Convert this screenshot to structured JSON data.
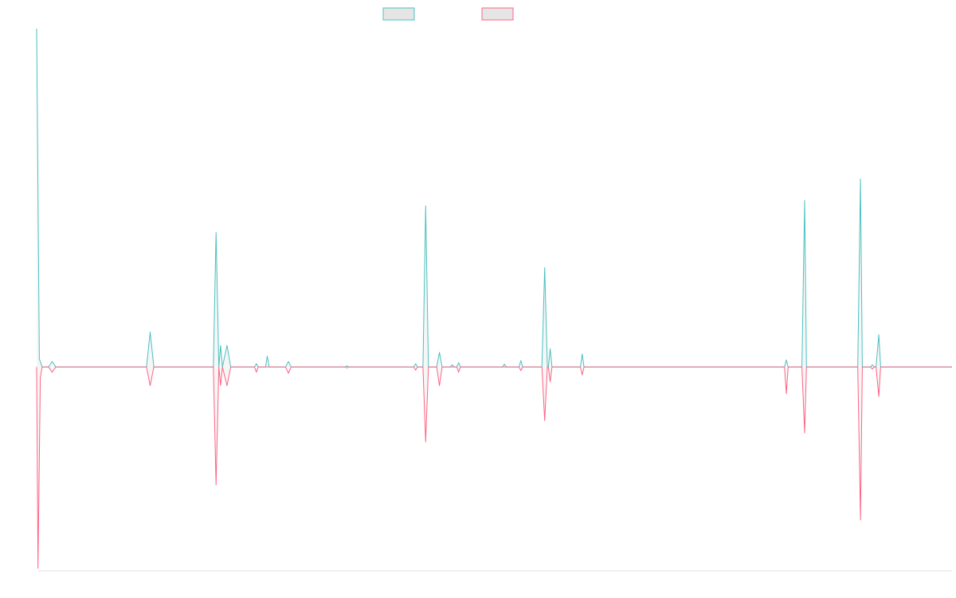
{
  "chart_data": {
    "type": "line",
    "title": "",
    "xlabel": "",
    "ylabel": "",
    "legend": {
      "placement": "top-center",
      "entries": [
        {
          "swatch_color": "#4bc0c0"
        },
        {
          "swatch_color": "#ff6384"
        }
      ]
    },
    "grid": false,
    "xlim": [
      0,
      100
    ],
    "ylim": [
      -38,
      63
    ],
    "series": [
      {
        "color": "#4bc0c0",
        "fill_color": "#e5e5e5",
        "points": [
          [
            0,
            63
          ],
          [
            0.3,
            1.5
          ],
          [
            0.6,
            0
          ],
          [
            1.3,
            0
          ],
          [
            1.7,
            1
          ],
          [
            2.1,
            0
          ],
          [
            12.0,
            0
          ],
          [
            12.4,
            6.5
          ],
          [
            12.8,
            0
          ],
          [
            19.3,
            0
          ],
          [
            19.6,
            25
          ],
          [
            19.9,
            0
          ],
          [
            20.1,
            4
          ],
          [
            20.3,
            0
          ],
          [
            20.8,
            4
          ],
          [
            21.2,
            0
          ],
          [
            23.8,
            0
          ],
          [
            24.0,
            0.6
          ],
          [
            24.2,
            0
          ],
          [
            25.0,
            0
          ],
          [
            25.2,
            2
          ],
          [
            25.4,
            0
          ],
          [
            27.2,
            0
          ],
          [
            27.5,
            1
          ],
          [
            27.8,
            0
          ],
          [
            33.7,
            0
          ],
          [
            33.9,
            0.2
          ],
          [
            34.1,
            0
          ],
          [
            41.2,
            0
          ],
          [
            41.4,
            0.6
          ],
          [
            41.6,
            0
          ],
          [
            42.2,
            0
          ],
          [
            42.5,
            30
          ],
          [
            42.8,
            0
          ],
          [
            43.7,
            0
          ],
          [
            44.0,
            2.7
          ],
          [
            44.3,
            0
          ],
          [
            45.2,
            0
          ],
          [
            45.4,
            0.4
          ],
          [
            45.6,
            0
          ],
          [
            45.9,
            0
          ],
          [
            46.1,
            0.8
          ],
          [
            46.3,
            0
          ],
          [
            50.9,
            0
          ],
          [
            51.1,
            0.5
          ],
          [
            51.3,
            0
          ],
          [
            52.7,
            0
          ],
          [
            52.9,
            1.2
          ],
          [
            53.1,
            0
          ],
          [
            55.2,
            0
          ],
          [
            55.5,
            18.5
          ],
          [
            55.8,
            0
          ],
          [
            55.9,
            0
          ],
          [
            56.1,
            3.4
          ],
          [
            56.3,
            0
          ],
          [
            59.4,
            0
          ],
          [
            59.6,
            2.4
          ],
          [
            59.8,
            0
          ],
          [
            81.7,
            0
          ],
          [
            81.9,
            1.3
          ],
          [
            82.1,
            0
          ],
          [
            83.6,
            0
          ],
          [
            83.9,
            31
          ],
          [
            84.1,
            0
          ],
          [
            89.7,
            0
          ],
          [
            90.0,
            35
          ],
          [
            90.2,
            0
          ],
          [
            91.1,
            0
          ],
          [
            91.3,
            0.4
          ],
          [
            91.5,
            0
          ],
          [
            91.7,
            0
          ],
          [
            92.0,
            6
          ],
          [
            92.2,
            0
          ],
          [
            100,
            0
          ]
        ]
      },
      {
        "color": "#ff6384",
        "fill_color": "#e5e5e5",
        "points": [
          [
            0,
            0
          ],
          [
            0.15,
            -37.5
          ],
          [
            0.4,
            -2
          ],
          [
            0.6,
            0
          ],
          [
            1.3,
            0
          ],
          [
            1.7,
            -1
          ],
          [
            2.1,
            0
          ],
          [
            12.0,
            0
          ],
          [
            12.4,
            -3.5
          ],
          [
            12.8,
            0
          ],
          [
            19.3,
            0
          ],
          [
            19.6,
            -22
          ],
          [
            19.9,
            0
          ],
          [
            20.1,
            -3.5
          ],
          [
            20.3,
            0
          ],
          [
            20.8,
            -3.5
          ],
          [
            21.2,
            0
          ],
          [
            23.8,
            0
          ],
          [
            24.0,
            -1
          ],
          [
            24.2,
            0
          ],
          [
            27.2,
            0
          ],
          [
            27.5,
            -1.2
          ],
          [
            27.8,
            0
          ],
          [
            33.7,
            0
          ],
          [
            33.9,
            -0.2
          ],
          [
            34.1,
            0
          ],
          [
            41.2,
            0
          ],
          [
            41.4,
            -0.6
          ],
          [
            41.6,
            0
          ],
          [
            42.2,
            0
          ],
          [
            42.5,
            -14
          ],
          [
            42.8,
            0
          ],
          [
            43.7,
            0
          ],
          [
            44.0,
            -3.5
          ],
          [
            44.3,
            0
          ],
          [
            45.9,
            0
          ],
          [
            46.1,
            -1
          ],
          [
            46.3,
            0
          ],
          [
            52.7,
            0
          ],
          [
            52.9,
            -0.7
          ],
          [
            53.1,
            0
          ],
          [
            55.2,
            0
          ],
          [
            55.5,
            -10
          ],
          [
            55.8,
            0
          ],
          [
            55.9,
            0
          ],
          [
            56.1,
            -2.8
          ],
          [
            56.3,
            0
          ],
          [
            59.4,
            0
          ],
          [
            59.6,
            -1.5
          ],
          [
            59.8,
            0
          ],
          [
            81.7,
            0
          ],
          [
            81.9,
            -5
          ],
          [
            82.1,
            0
          ],
          [
            83.6,
            0
          ],
          [
            83.9,
            -12.3
          ],
          [
            84.1,
            0
          ],
          [
            89.7,
            0
          ],
          [
            90.0,
            -28.5
          ],
          [
            90.2,
            0
          ],
          [
            91.1,
            0
          ],
          [
            91.3,
            -0.4
          ],
          [
            91.5,
            0
          ],
          [
            91.7,
            0
          ],
          [
            92.0,
            -5.5
          ],
          [
            92.2,
            0
          ],
          [
            100,
            0
          ]
        ]
      }
    ]
  }
}
